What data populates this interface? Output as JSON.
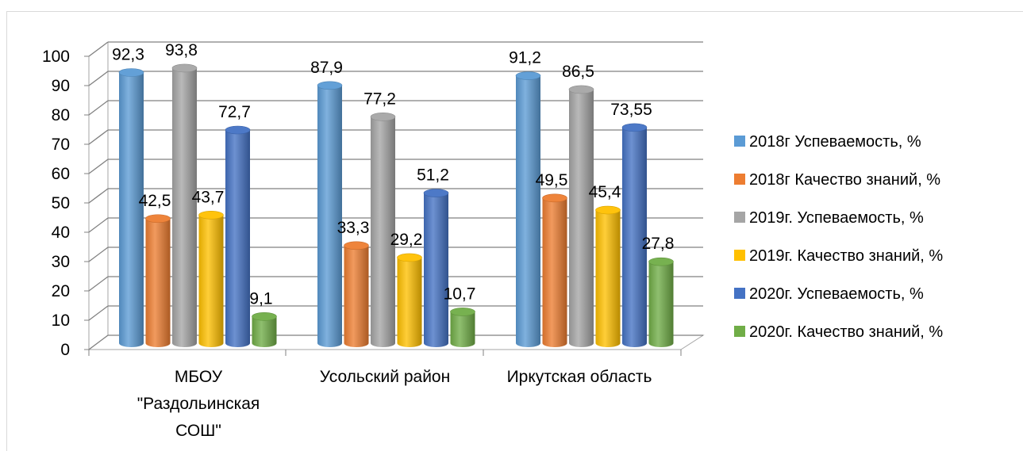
{
  "chart_data": {
    "type": "bar",
    "title": "",
    "xlabel": "",
    "ylabel": "",
    "ylim": [
      0,
      100
    ],
    "yticks": [
      0,
      10,
      20,
      30,
      40,
      50,
      60,
      70,
      80,
      90,
      100
    ],
    "grid": true,
    "legend_position": "right",
    "categories": [
      [
        "МБОУ",
        "\"Раздольинская",
        "СОШ\""
      ],
      [
        "Усольский район"
      ],
      [
        "Иркутская область"
      ]
    ],
    "series": [
      {
        "name": "2018г Успеваемость, %",
        "color": "#5b9bd5",
        "values": [
          92.3,
          87.9,
          91.2
        ],
        "labels": [
          "92,3",
          "87,9",
          "91,2"
        ]
      },
      {
        "name": "2018г Качество знаний, %",
        "color": "#ed7d31",
        "values": [
          42.5,
          33.3,
          49.5
        ],
        "labels": [
          "42,5",
          "33,3",
          "49,5"
        ]
      },
      {
        "name": "2019г. Успеваемость, %",
        "color": "#a5a5a5",
        "values": [
          93.8,
          77.2,
          86.5
        ],
        "labels": [
          "93,8",
          "77,2",
          "86,5"
        ]
      },
      {
        "name": "2019г. Качество знаний, %",
        "color": "#ffc000",
        "values": [
          43.7,
          29.2,
          45.4
        ],
        "labels": [
          "43,7",
          "29,2",
          "45,4"
        ]
      },
      {
        "name": "2020г. Успеваемость, %",
        "color": "#4472c4",
        "values": [
          72.7,
          51.2,
          73.55
        ],
        "labels": [
          "72,7",
          "51,2",
          "73,55"
        ]
      },
      {
        "name": "2020г. Качество знаний, %",
        "color": "#70ad47",
        "values": [
          9.1,
          10.7,
          27.8
        ],
        "labels": [
          "9,1",
          "10,7",
          "27,8"
        ]
      }
    ]
  }
}
